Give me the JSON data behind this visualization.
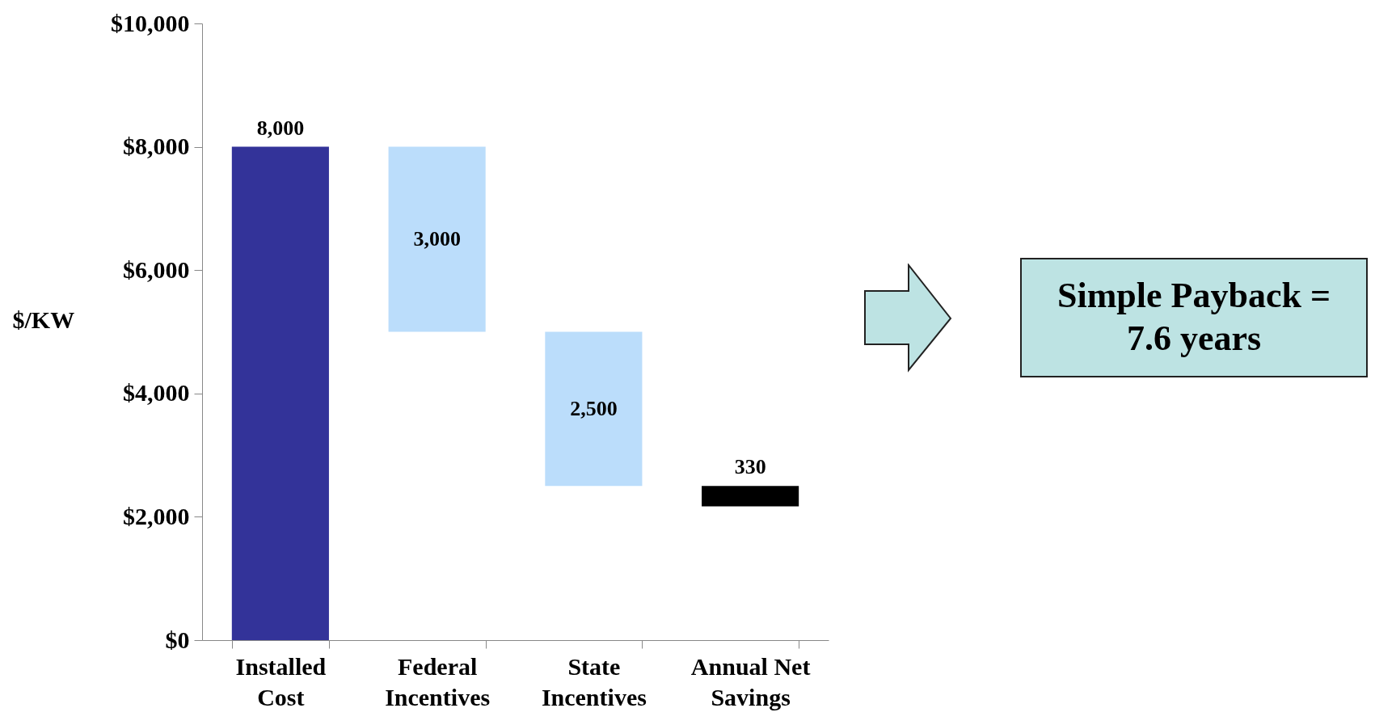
{
  "chart_data": {
    "type": "bar",
    "ylabel": "$/KW",
    "categories": [
      "Installed Cost",
      "Federal Incentives",
      "State Incentives",
      "Annual Net Savings"
    ],
    "values": [
      8000,
      3000,
      2500,
      330
    ],
    "base": [
      0,
      5000,
      2500,
      2170
    ],
    "colors": [
      "#333399",
      "#bbddfb",
      "#bbddfb",
      "#000000"
    ],
    "value_labels": [
      "8,000",
      "3,000",
      "2,500",
      "330"
    ],
    "ylim": [
      0,
      10000
    ],
    "yticks": [
      {
        "value": 0,
        "label": "$0"
      },
      {
        "value": 2000,
        "label": "$2,000"
      },
      {
        "value": 4000,
        "label": "$4,000"
      },
      {
        "value": 6000,
        "label": "$6,000"
      },
      {
        "value": 8000,
        "label": "$8,000"
      },
      {
        "value": 10000,
        "label": "$10,000"
      }
    ],
    "annotations": [
      "Simple Payback = 7.6 years"
    ],
    "grid": false
  }
}
